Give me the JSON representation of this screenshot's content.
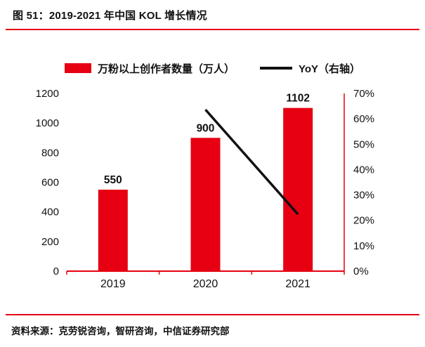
{
  "title": "图 51：2019-2021 年中国 KOL 增长情况",
  "source": "资料来源：克劳锐咨询，智研咨询，中信证券研究部",
  "colors": {
    "red": "#e60012",
    "black": "#111111"
  },
  "legend": [
    {
      "label": "万粉以上创作者数量（万人）",
      "marker": "bar-swatch",
      "color": "#e60012"
    },
    {
      "label": "YoY（右轴）",
      "marker": "line-swatch",
      "color": "#111111"
    }
  ],
  "chart_data": {
    "type": "bar",
    "title": "2019-2021 年中国 KOL 增长情况",
    "categories": [
      "2019",
      "2020",
      "2021"
    ],
    "series": [
      {
        "name": "万粉以上创作者数量（万人）",
        "type": "bar",
        "axis": "left",
        "color": "#e60012",
        "values": [
          550,
          900,
          1102
        ],
        "data_labels": [
          "550",
          "900",
          "1102"
        ]
      },
      {
        "name": "YoY（右轴）",
        "type": "line",
        "axis": "right",
        "color": "#111111",
        "values": [
          null,
          63.6,
          22.4
        ]
      }
    ],
    "left_axis": {
      "min": 0,
      "max": 1200,
      "step": 200,
      "tick_labels": [
        "0",
        "200",
        "400",
        "600",
        "800",
        "1000",
        "1200"
      ]
    },
    "right_axis": {
      "min": 0,
      "max": 70,
      "step": 10,
      "tick_labels": [
        "0%",
        "10%",
        "20%",
        "30%",
        "40%",
        "50%",
        "60%",
        "70%"
      ]
    },
    "grid": false,
    "legend_position": "top"
  }
}
